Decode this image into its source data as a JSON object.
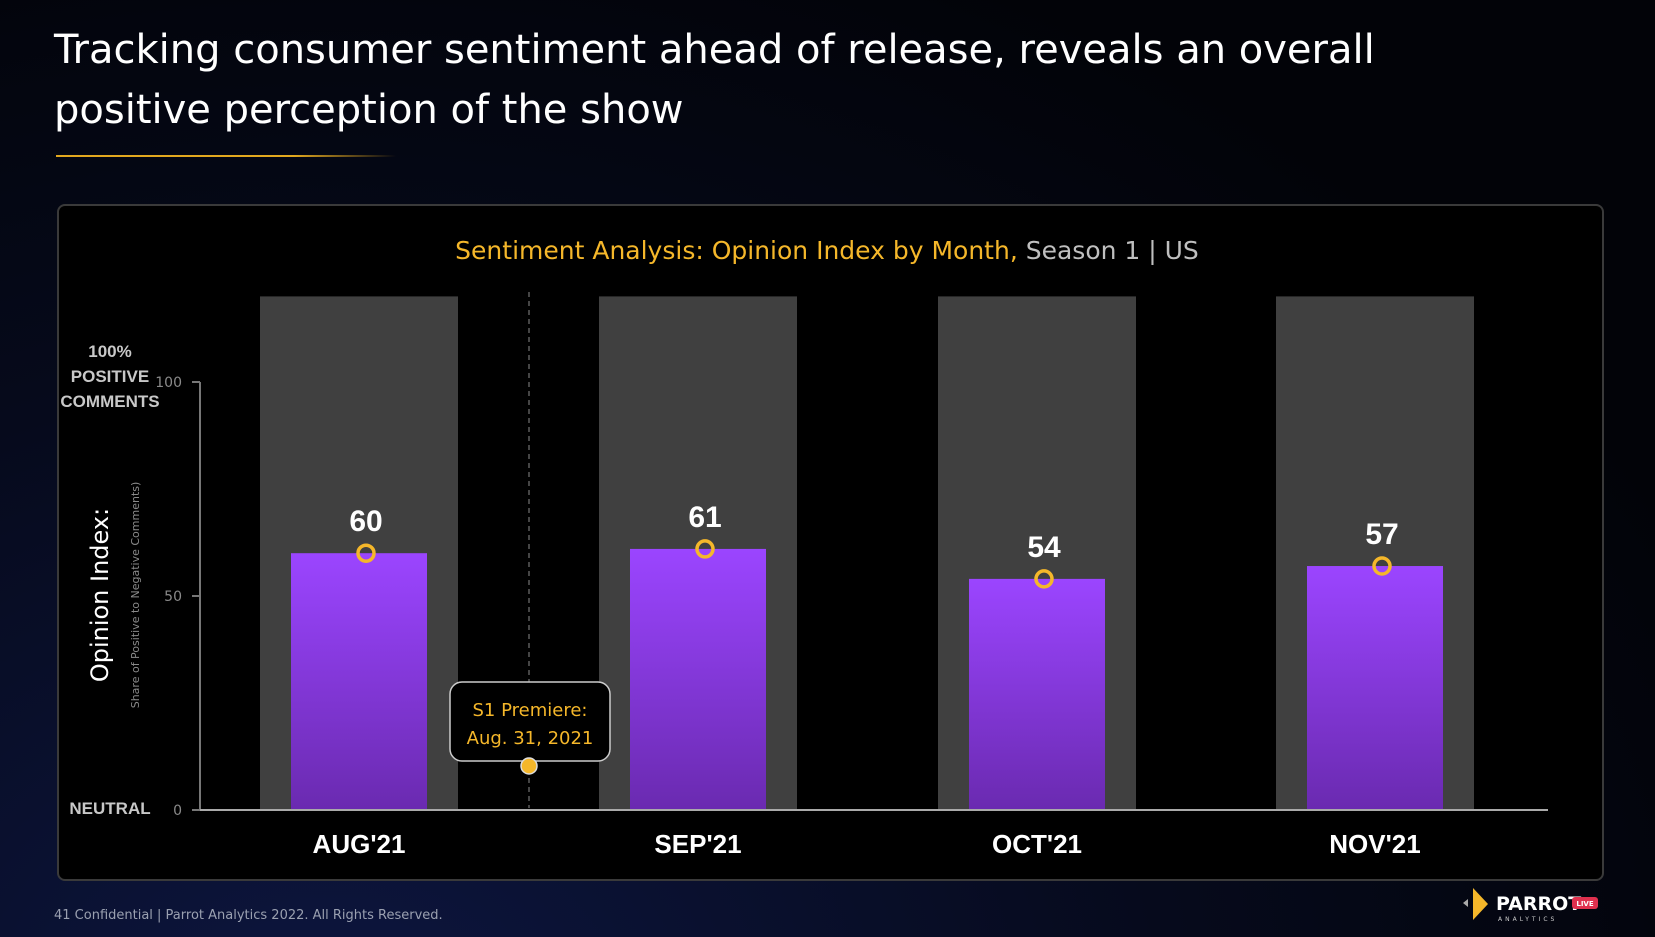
{
  "slide": {
    "title": "Tracking consumer sentiment ahead of release, reveals an overall positive perception of the show",
    "footer": "41  Confidential  |  Parrot Analytics 2022. All Rights Reserved.",
    "logo": {
      "name": "PARROT",
      "sub": "ANALYTICS",
      "badge": "LIVE"
    }
  },
  "chart_data": {
    "type": "bar",
    "title": "Sentiment Analysis: Opinion Index by Month,",
    "subtitle": "Season 1 | US",
    "ylabel": "Opinion Index:",
    "ylabel_sub": "Share of Positive to Negative Comments)",
    "y_top_label": [
      "100%",
      "POSITIVE",
      "COMMENTS"
    ],
    "y_bottom_label": "NEUTRAL",
    "ylim": [
      0,
      120
    ],
    "yticks": [
      0,
      50,
      100
    ],
    "categories": [
      "AUG'21",
      "SEP'21",
      "OCT'21",
      "NOV'21"
    ],
    "values": [
      60,
      61,
      54,
      57
    ],
    "background_bar_value": 120,
    "annotation": {
      "text": [
        "S1 Premiere:",
        "Aug. 31, 2021"
      ],
      "position": "between AUG'21 and SEP'21"
    },
    "grid": false,
    "colors": {
      "bar_top": "#9b45ff",
      "bar_bottom": "#6a2ab0",
      "background_bar": "#404040",
      "marker": "#f5b72a",
      "title": "#f5b72a",
      "subtitle": "#bfbfbf"
    }
  }
}
